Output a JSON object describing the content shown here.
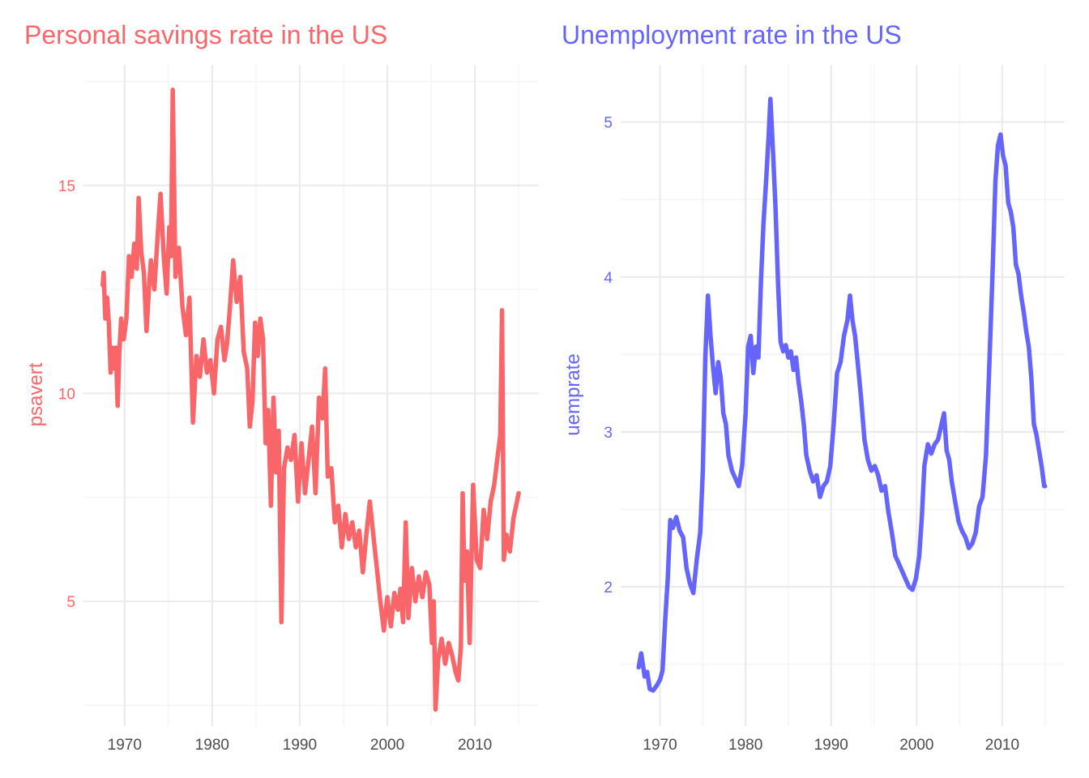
{
  "chart_data": [
    {
      "type": "line",
      "title": "Personal savings rate in the US",
      "xlabel": "",
      "ylabel": "psavert",
      "color": "#F8666A",
      "xlim": [
        1965.3,
        2017.3
      ],
      "ylim": [
        2.0,
        17.9
      ],
      "x_ticks": [
        1970,
        1980,
        1990,
        2000,
        2010
      ],
      "x_tick_labels": [
        "1970",
        "1980",
        "1990",
        "2000",
        "2010"
      ],
      "y_ticks": [
        5,
        10,
        15
      ],
      "y_tick_labels": [
        "5",
        "10",
        "15"
      ],
      "grid": true,
      "legend": "none",
      "series": [
        {
          "x": [
            1967.5,
            1967.6,
            1967.8,
            1968.0,
            1968.2,
            1968.4,
            1968.6,
            1968.8,
            1969.0,
            1969.2,
            1969.4,
            1969.6,
            1969.9,
            1970.2,
            1970.5,
            1970.8,
            1971.1,
            1971.4,
            1971.6,
            1971.9,
            1972.2,
            1972.5,
            1972.8,
            1973.0,
            1973.4,
            1973.8,
            1974.1,
            1974.5,
            1974.8,
            1975.1,
            1975.3,
            1975.5,
            1975.8,
            1976.2,
            1976.6,
            1977.0,
            1977.4,
            1977.8,
            1978.2,
            1978.6,
            1979.0,
            1979.4,
            1979.8,
            1980.2,
            1980.6,
            1981.0,
            1981.4,
            1981.7,
            1982.0,
            1982.4,
            1982.8,
            1983.2,
            1983.6,
            1984.0,
            1984.3,
            1984.6,
            1984.9,
            1985.2,
            1985.5,
            1985.8,
            1986.1,
            1986.4,
            1986.7,
            1987.0,
            1987.3,
            1987.6,
            1987.9,
            1988.2,
            1988.6,
            1989.0,
            1989.4,
            1989.8,
            1990.2,
            1990.6,
            1991.0,
            1991.4,
            1991.8,
            1992.2,
            1992.6,
            1992.9,
            1993.2,
            1993.6,
            1994.0,
            1994.4,
            1994.8,
            1995.2,
            1995.6,
            1996.0,
            1996.4,
            1996.8,
            1997.2,
            1997.6,
            1998.0,
            1998.4,
            1998.8,
            1999.2,
            1999.6,
            2000.0,
            2000.4,
            2000.8,
            2001.2,
            2001.5,
            2001.8,
            2002.1,
            2002.4,
            2002.8,
            2003.2,
            2003.6,
            2004.0,
            2004.4,
            2004.8,
            2005.1,
            2005.3,
            2005.5,
            2005.8,
            2006.2,
            2006.6,
            2007.0,
            2007.4,
            2007.8,
            2008.1,
            2008.4,
            2008.6,
            2008.8,
            2009.1,
            2009.4,
            2009.8,
            2010.2,
            2010.6,
            2011.0,
            2011.4,
            2011.8,
            2012.2,
            2012.6,
            2012.9,
            2013.1,
            2013.3,
            2013.6,
            2014.0,
            2014.4,
            2014.8,
            2015.0
          ],
          "y": [
            12.6,
            12.9,
            11.8,
            12.3,
            11.7,
            10.5,
            11.1,
            10.6,
            11.1,
            9.7,
            11.0,
            11.8,
            11.3,
            11.8,
            13.3,
            12.8,
            13.6,
            13.0,
            14.7,
            13.4,
            12.9,
            11.5,
            12.6,
            13.2,
            12.5,
            13.9,
            14.8,
            13.2,
            12.4,
            14.0,
            13.3,
            17.3,
            12.8,
            13.5,
            12.1,
            11.4,
            12.3,
            9.3,
            10.9,
            10.4,
            11.3,
            10.5,
            10.8,
            10.0,
            11.3,
            11.6,
            10.8,
            11.2,
            12.0,
            13.2,
            12.2,
            12.8,
            11.0,
            10.6,
            9.2,
            9.8,
            11.7,
            10.9,
            11.8,
            11.3,
            8.8,
            9.6,
            7.3,
            9.9,
            8.1,
            9.1,
            4.5,
            8.2,
            8.7,
            8.4,
            9.0,
            7.4,
            8.8,
            7.6,
            8.4,
            9.2,
            7.6,
            9.9,
            9.4,
            10.6,
            8.0,
            8.2,
            6.9,
            7.3,
            6.3,
            7.1,
            6.5,
            6.9,
            6.3,
            6.7,
            5.7,
            6.6,
            7.4,
            6.6,
            5.8,
            5.0,
            4.3,
            5.1,
            4.4,
            5.2,
            4.8,
            5.3,
            4.5,
            6.9,
            4.6,
            5.8,
            5.0,
            5.6,
            5.1,
            5.7,
            5.4,
            4.0,
            5.0,
            2.4,
            3.6,
            4.1,
            3.5,
            4.0,
            3.7,
            3.3,
            3.1,
            3.9,
            7.6,
            5.5,
            6.2,
            4.0,
            7.8,
            6.0,
            5.8,
            7.2,
            6.5,
            7.4,
            7.8,
            8.5,
            9.0,
            12.0,
            6.0,
            6.6,
            6.2,
            7.0,
            7.4,
            7.6
          ]
        }
      ]
    },
    {
      "type": "line",
      "title": "Unemployment rate in the US",
      "xlabel": "",
      "ylabel": "uemprate",
      "color": "#6565FC",
      "xlim": [
        1965.4,
        2017.3
      ],
      "ylim": [
        1.1,
        5.37
      ],
      "x_ticks": [
        1970,
        1980,
        1990,
        2000,
        2010
      ],
      "x_tick_labels": [
        "1970",
        "1980",
        "1990",
        "2000",
        "2010"
      ],
      "y_ticks": [
        2,
        3,
        4,
        5
      ],
      "y_tick_labels": [
        "2",
        "3",
        "4",
        "5"
      ],
      "grid": true,
      "legend": "none",
      "series": [
        {
          "x": [
            1967.5,
            1967.8,
            1968.2,
            1968.5,
            1968.8,
            1969.2,
            1969.6,
            1970.0,
            1970.3,
            1970.6,
            1970.9,
            1971.2,
            1971.5,
            1971.9,
            1972.3,
            1972.7,
            1973.1,
            1973.5,
            1973.9,
            1974.3,
            1974.7,
            1975.0,
            1975.3,
            1975.6,
            1975.9,
            1976.2,
            1976.5,
            1976.8,
            1977.1,
            1977.4,
            1977.7,
            1978.0,
            1978.4,
            1978.8,
            1979.2,
            1979.6,
            1980.0,
            1980.3,
            1980.6,
            1980.9,
            1981.2,
            1981.5,
            1981.8,
            1982.1,
            1982.4,
            1982.7,
            1982.9,
            1983.2,
            1983.5,
            1983.8,
            1984.1,
            1984.4,
            1984.7,
            1985.0,
            1985.3,
            1985.6,
            1985.9,
            1986.2,
            1986.5,
            1986.8,
            1987.1,
            1987.5,
            1987.9,
            1988.3,
            1988.7,
            1989.1,
            1989.5,
            1989.9,
            1990.3,
            1990.7,
            1991.1,
            1991.5,
            1991.9,
            1992.2,
            1992.5,
            1992.8,
            1993.1,
            1993.5,
            1993.9,
            1994.3,
            1994.7,
            1995.1,
            1995.5,
            1995.9,
            1996.3,
            1996.7,
            1997.1,
            1997.5,
            1997.9,
            1998.3,
            1998.7,
            1999.1,
            1999.5,
            1999.9,
            2000.3,
            2000.6,
            2000.9,
            2001.3,
            2001.7,
            2002.1,
            2002.5,
            2002.9,
            2003.2,
            2003.5,
            2003.8,
            2004.1,
            2004.5,
            2004.9,
            2005.3,
            2005.7,
            2006.1,
            2006.5,
            2006.9,
            2007.3,
            2007.7,
            2008.1,
            2008.5,
            2008.9,
            2009.2,
            2009.5,
            2009.8,
            2010.1,
            2010.4,
            2010.7,
            2011.0,
            2011.3,
            2011.6,
            2011.9,
            2012.2,
            2012.5,
            2012.8,
            2013.1,
            2013.4,
            2013.7,
            2014.0,
            2014.3,
            2014.6,
            2014.9,
            2015.0
          ],
          "y": [
            1.48,
            1.57,
            1.42,
            1.45,
            1.34,
            1.33,
            1.36,
            1.4,
            1.46,
            1.78,
            2.05,
            2.43,
            2.38,
            2.45,
            2.36,
            2.32,
            2.12,
            2.02,
            1.96,
            2.18,
            2.35,
            2.75,
            3.48,
            3.88,
            3.62,
            3.42,
            3.25,
            3.45,
            3.35,
            3.12,
            3.05,
            2.85,
            2.75,
            2.7,
            2.65,
            2.78,
            3.12,
            3.55,
            3.62,
            3.38,
            3.55,
            3.48,
            3.98,
            4.35,
            4.62,
            4.92,
            5.15,
            4.82,
            4.45,
            3.95,
            3.58,
            3.52,
            3.56,
            3.48,
            3.52,
            3.4,
            3.48,
            3.32,
            3.2,
            3.05,
            2.85,
            2.75,
            2.68,
            2.72,
            2.58,
            2.65,
            2.68,
            2.78,
            3.05,
            3.38,
            3.45,
            3.62,
            3.72,
            3.88,
            3.72,
            3.62,
            3.45,
            3.22,
            2.95,
            2.82,
            2.75,
            2.78,
            2.72,
            2.62,
            2.65,
            2.48,
            2.35,
            2.2,
            2.15,
            2.1,
            2.05,
            2.0,
            1.98,
            2.05,
            2.2,
            2.45,
            2.78,
            2.92,
            2.86,
            2.92,
            2.95,
            3.05,
            3.12,
            2.88,
            2.82,
            2.68,
            2.55,
            2.42,
            2.36,
            2.32,
            2.25,
            2.28,
            2.35,
            2.52,
            2.58,
            2.85,
            3.45,
            4.08,
            4.62,
            4.85,
            4.92,
            4.78,
            4.72,
            4.48,
            4.42,
            4.32,
            4.08,
            4.02,
            3.88,
            3.78,
            3.65,
            3.55,
            3.35,
            3.05,
            2.98,
            2.88,
            2.78,
            2.65,
            2.65
          ]
        }
      ]
    }
  ]
}
